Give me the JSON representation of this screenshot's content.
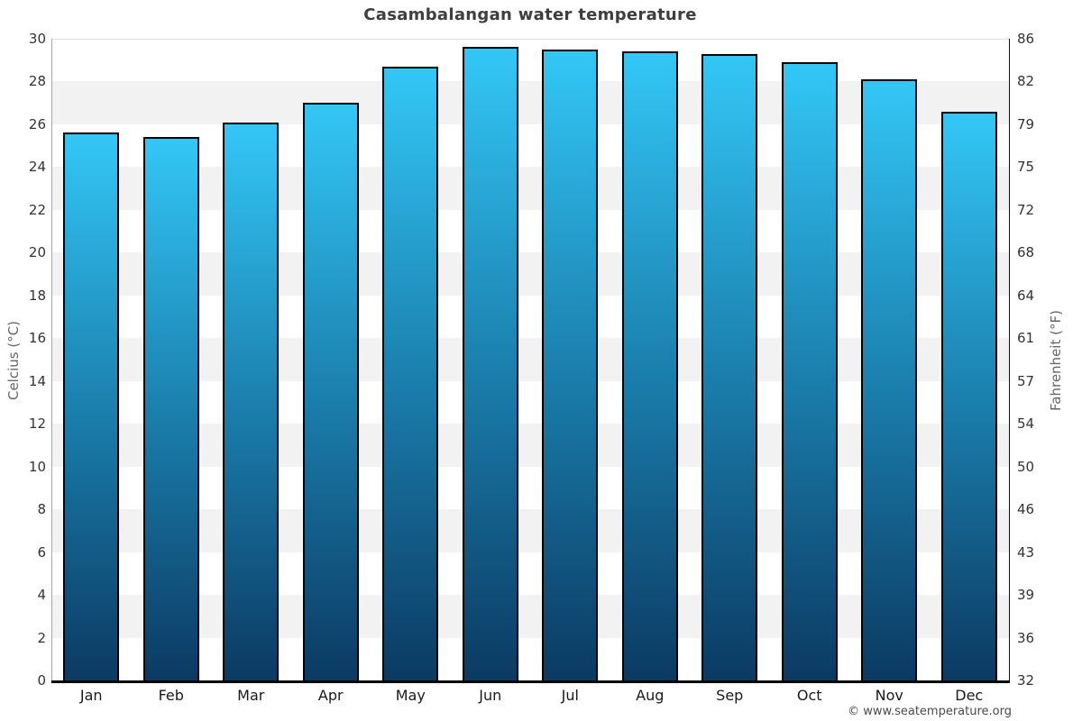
{
  "page": {
    "footer_credit": "© www.seatemperature.org"
  },
  "chart_data": {
    "type": "bar",
    "title": "Casambalangan water temperature",
    "categories": [
      "Jan",
      "Feb",
      "Mar",
      "Apr",
      "May",
      "Jun",
      "Jul",
      "Aug",
      "Sep",
      "Oct",
      "Nov",
      "Dec"
    ],
    "values": [
      25.6,
      25.4,
      26.1,
      27.0,
      28.7,
      29.6,
      29.5,
      29.4,
      29.3,
      28.9,
      28.1,
      26.6
    ],
    "xlabel": "",
    "ylabel_left": "Celcius (°C)",
    "ylabel_right": "Fahrenheit (°F)",
    "ylim": [
      0,
      30
    ],
    "left_axis_ticks": [
      30,
      28,
      26,
      24,
      22,
      20,
      18,
      16,
      14,
      12,
      10,
      8,
      6,
      4,
      2,
      0
    ],
    "right_axis_ticks": [
      86,
      82,
      79,
      75,
      72,
      68,
      64,
      61,
      57,
      54,
      50,
      46,
      43,
      39,
      36,
      32
    ],
    "legend_position": "none",
    "grid": "alternating horizontal gray bands every 2 degrees C",
    "colors": {
      "bar_gradient_top": "#33c7f6",
      "bar_gradient_mid": "#1b80ae",
      "bar_gradient_bottom": "#0b3a62",
      "bar_border": "#000000",
      "band_gray": "#f2f2f2",
      "background": "#ffffff",
      "title_text": "#3e3e3e",
      "tick_text": "#333333",
      "axis_title_text": "#666666",
      "footer_text": "#4a4a4a"
    }
  }
}
